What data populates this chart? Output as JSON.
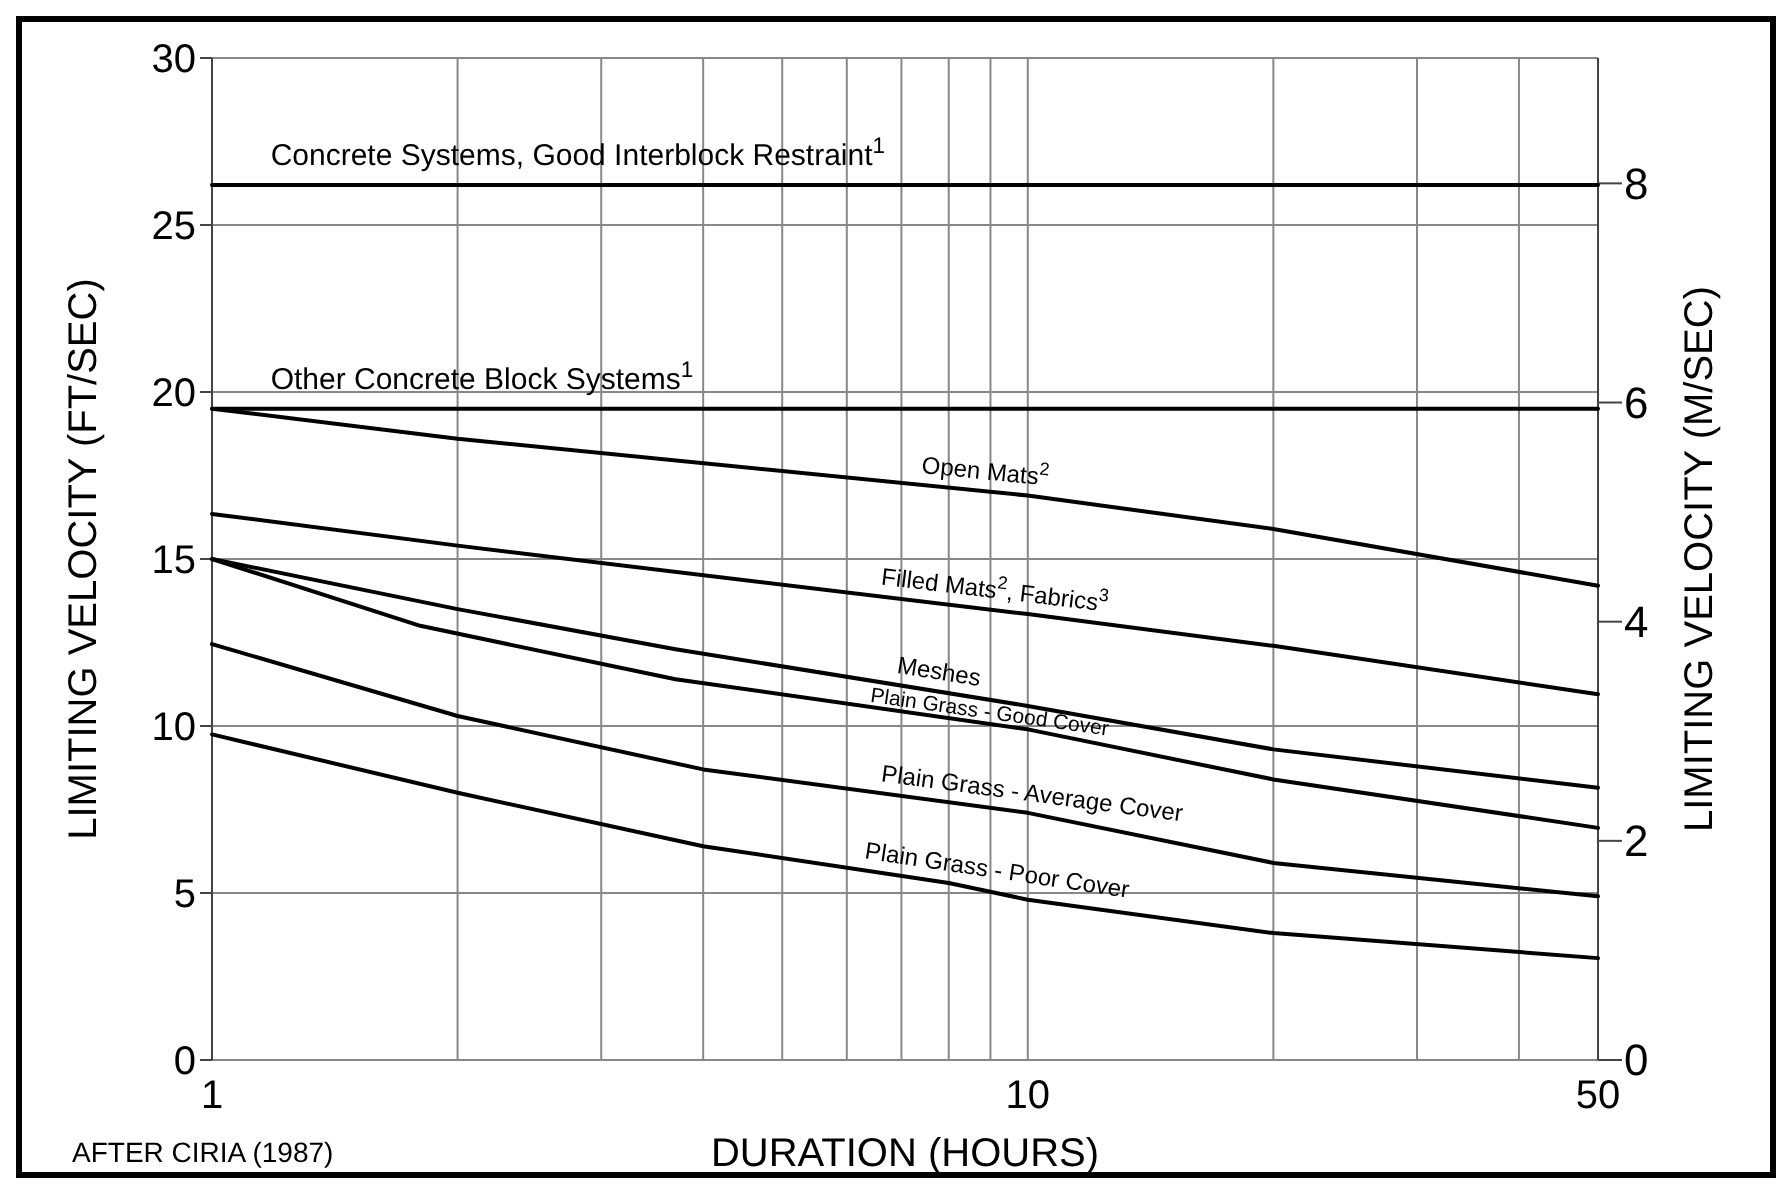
{
  "chart_data": {
    "type": "line",
    "xlabel": "DURATION (HOURS)",
    "ylabel": "LIMITING VELOCITY (FT/SEC)",
    "y2label": "LIMITING VELOCITY (M/SEC)",
    "annotations": [
      "AFTER CIRIA (1987)"
    ],
    "log": "x",
    "xlim": [
      1,
      50
    ],
    "xticks": [
      1,
      {
        "value": 2,
        "label": null
      },
      {
        "value": 3,
        "label": null
      },
      {
        "value": 4,
        "label": null
      },
      {
        "value": 5,
        "label": null
      },
      {
        "value": 6,
        "label": null
      },
      {
        "value": 7,
        "label": null
      },
      {
        "value": 8,
        "label": null
      },
      {
        "value": 9,
        "label": null
      },
      10,
      {
        "value": 20,
        "label": null
      },
      {
        "value": 30,
        "label": null
      },
      {
        "value": 40,
        "label": null
      },
      50
    ],
    "ylim": [
      0,
      30
    ],
    "yticks": [
      0,
      5,
      10,
      15,
      20,
      25,
      30
    ],
    "y2lim": [
      0,
      9.144
    ],
    "y2ticks": [
      0,
      2,
      4,
      6,
      8
    ],
    "grid": true,
    "marker": "none",
    "line_style": "solid",
    "series": [
      {
        "name": "Concrete Systems, Good Interblock Restraint$^{1}$",
        "color": "#000000",
        "x": [
          1,
          50
        ],
        "values": [
          26.2,
          26.2
        ]
      },
      {
        "name": "Other Concrete Block Systems$^{1}$",
        "color": "#000000",
        "x": [
          1,
          50
        ],
        "values": [
          19.5,
          19.5
        ]
      },
      {
        "name": "Open Mats$^{2}$",
        "color": "#000000",
        "x": [
          1,
          2,
          10,
          20,
          50
        ],
        "values": [
          19.5,
          18.6,
          16.9,
          15.9,
          14.2
        ]
      },
      {
        "name": "Filled Mats$^{2}$, Fabrics$^{3}$",
        "color": "#000000",
        "x": [
          1,
          2,
          10,
          20,
          50
        ],
        "values": [
          16.35,
          15.4,
          13.35,
          12.4,
          10.95
        ]
      },
      {
        "name": "Meshes",
        "color": "#000000",
        "x": [
          1,
          2,
          3.7,
          10,
          20,
          50
        ],
        "values": [
          15,
          13.5,
          12.3,
          10.6,
          9.3,
          8.15
        ]
      },
      {
        "name": "Plain Grass - Good Cover",
        "color": "#000000",
        "x": [
          1,
          1.8,
          3.7,
          10,
          20,
          50
        ],
        "values": [
          15,
          13,
          11.4,
          9.9,
          8.4,
          6.95
        ]
      },
      {
        "name": "Plain Grass - Average Cover",
        "color": "#000000",
        "x": [
          1,
          2,
          4,
          10,
          20,
          50
        ],
        "values": [
          12.45,
          10.3,
          8.7,
          7.4,
          5.9,
          4.9
        ]
      },
      {
        "name": "Plain Grass - Poor Cover",
        "color": "#000000",
        "x": [
          1,
          2,
          4,
          8,
          10,
          20,
          50
        ],
        "values": [
          9.75,
          8.0,
          6.4,
          5.3,
          4.8,
          3.8,
          3.05
        ]
      }
    ]
  }
}
